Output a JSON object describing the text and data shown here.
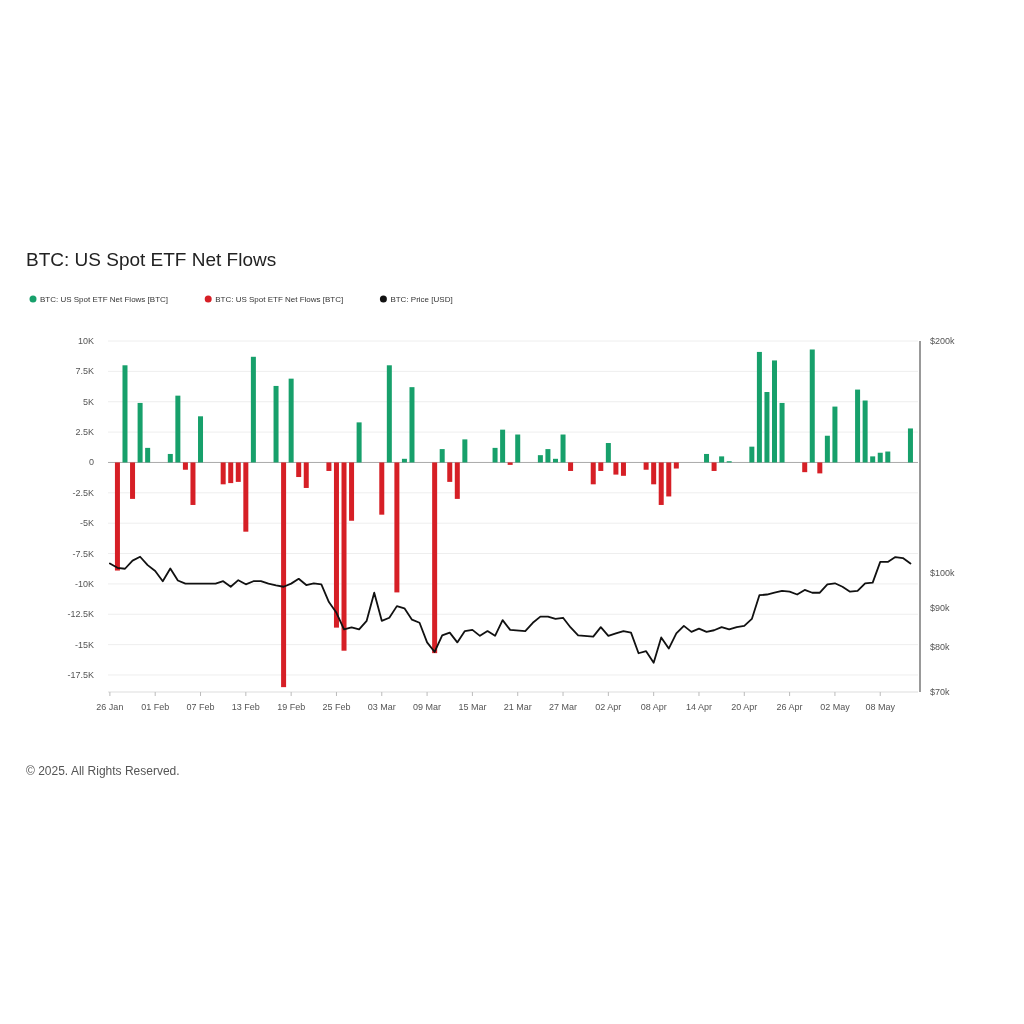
{
  "chart_data": {
    "type": "bar",
    "title": "BTC: US Spot ETF Net Flows",
    "annotations": [
      "© 2025. All Rights Reserved."
    ],
    "legend": "top left",
    "grid": "y",
    "log": "y2",
    "xlim": [
      "2025-01-25T18:00",
      "2025-05-13"
    ],
    "xticks": [
      {
        "value": "2025-01-26",
        "label": "26 Jan"
      },
      {
        "value": "2025-02-01",
        "label": "01 Feb"
      },
      {
        "value": "2025-02-07",
        "label": "07 Feb"
      },
      {
        "value": "2025-02-13",
        "label": "13 Feb"
      },
      {
        "value": "2025-02-19",
        "label": "19 Feb"
      },
      {
        "value": "2025-02-25",
        "label": "25 Feb"
      },
      {
        "value": "2025-03-03",
        "label": "03 Mar"
      },
      {
        "value": "2025-03-09",
        "label": "09 Mar"
      },
      {
        "value": "2025-03-15",
        "label": "15 Mar"
      },
      {
        "value": "2025-03-21",
        "label": "21 Mar"
      },
      {
        "value": "2025-03-27",
        "label": "27 Mar"
      },
      {
        "value": "2025-04-02",
        "label": "02 Apr"
      },
      {
        "value": "2025-04-08",
        "label": "08 Apr"
      },
      {
        "value": "2025-04-14",
        "label": "14 Apr"
      },
      {
        "value": "2025-04-20",
        "label": "20 Apr"
      },
      {
        "value": "2025-04-26",
        "label": "26 Apr"
      },
      {
        "value": "2025-05-02",
        "label": "02 May"
      },
      {
        "value": "2025-05-08",
        "label": "08 May"
      }
    ],
    "ylim": [
      -18900,
      10000
    ],
    "yticks": [
      {
        "value": 10000,
        "label": "10K"
      },
      {
        "value": 7500,
        "label": "7.5K"
      },
      {
        "value": 5000,
        "label": "5K"
      },
      {
        "value": 2500,
        "label": "2.5K"
      },
      0,
      {
        "value": -2500,
        "label": "-2.5K"
      },
      {
        "value": -5000,
        "label": "-5K"
      },
      {
        "value": -7500,
        "label": "-7.5K"
      },
      {
        "value": -10000,
        "label": "-10K"
      },
      {
        "value": -12500,
        "label": "-12.5K"
      },
      {
        "value": -15000,
        "label": "-15K"
      },
      {
        "value": -17500,
        "label": "-17.5K"
      }
    ],
    "y2lim": [
      70000,
      200000
    ],
    "y2ticks": [
      {
        "value": 70000,
        "label": "$70k"
      },
      {
        "value": 80000,
        "label": "$80k"
      },
      {
        "value": 90000,
        "label": "$90k"
      },
      {
        "value": 100000,
        "label": "$100k"
      },
      {
        "value": 200000,
        "label": "$200k"
      }
    ],
    "series": [
      {
        "name": "BTC: US Spot ETF Net Flows [BTC]",
        "color": "#17a06b",
        "x": [
          "2025-01-28",
          "2025-01-30",
          "2025-01-31",
          "2025-02-03",
          "2025-02-04",
          "2025-02-07",
          "2025-02-14",
          "2025-02-17",
          "2025-02-19",
          "2025-02-28",
          "2025-03-04",
          "2025-03-06",
          "2025-03-07",
          "2025-03-11",
          "2025-03-14",
          "2025-03-18",
          "2025-03-19",
          "2025-03-21",
          "2025-03-24",
          "2025-03-25",
          "2025-03-26",
          "2025-03-27",
          "2025-04-02",
          "2025-04-15",
          "2025-04-17",
          "2025-04-18",
          "2025-04-21",
          "2025-04-22",
          "2025-04-23",
          "2025-04-24",
          "2025-04-25",
          "2025-04-29",
          "2025-05-01",
          "2025-05-02",
          "2025-05-05",
          "2025-05-06",
          "2025-05-07",
          "2025-05-08",
          "2025-05-09",
          "2025-05-12"
        ],
        "values": [
          8000,
          4900,
          1200,
          700,
          5500,
          3800,
          8700,
          6300,
          6900,
          3300,
          8000,
          300,
          6200,
          1100,
          1900,
          1200,
          2700,
          2300,
          600,
          1100,
          300,
          2300,
          1600,
          700,
          500,
          100,
          1300,
          9100,
          5800,
          8400,
          4900,
          9300,
          2200,
          4600,
          6000,
          5100,
          500,
          800,
          900,
          2800
        ]
      },
      {
        "name": "BTC: US Spot ETF Net Flows [BTC]",
        "color": "#d61f26",
        "x": [
          "2025-01-27",
          "2025-01-29",
          "2025-02-05",
          "2025-02-06",
          "2025-02-10",
          "2025-02-11",
          "2025-02-12",
          "2025-02-13",
          "2025-02-18",
          "2025-02-20",
          "2025-02-21",
          "2025-02-24",
          "2025-02-25",
          "2025-02-26",
          "2025-02-27",
          "2025-03-03",
          "2025-03-05",
          "2025-03-10",
          "2025-03-12",
          "2025-03-13",
          "2025-03-20",
          "2025-03-28",
          "2025-03-31",
          "2025-04-01",
          "2025-04-03",
          "2025-04-04",
          "2025-04-07",
          "2025-04-08",
          "2025-04-09",
          "2025-04-10",
          "2025-04-11",
          "2025-04-16",
          "2025-04-28",
          "2025-04-30"
        ],
        "values": [
          -8900,
          -3000,
          -600,
          -3500,
          -1800,
          -1700,
          -1600,
          -5700,
          -18500,
          -1200,
          -2100,
          -700,
          -13600,
          -15500,
          -4800,
          -4300,
          -10700,
          -15700,
          -1600,
          -3000,
          -200,
          -700,
          -1800,
          -700,
          -1000,
          -1100,
          -600,
          -1800,
          -3500,
          -2800,
          -500,
          -700,
          -800,
          -900
        ]
      },
      {
        "name": "BTC: Price [USD]",
        "type": "line",
        "axis": "y2",
        "color": "#111111",
        "x": [
          "2025-01-26",
          "2025-01-27",
          "2025-01-28",
          "2025-01-29",
          "2025-01-30",
          "2025-01-31",
          "2025-02-01",
          "2025-02-02",
          "2025-02-03",
          "2025-02-04",
          "2025-02-05",
          "2025-02-09",
          "2025-02-10",
          "2025-02-11",
          "2025-02-12",
          "2025-02-13",
          "2025-02-14",
          "2025-02-15",
          "2025-02-16",
          "2025-02-17",
          "2025-02-18",
          "2025-02-19",
          "2025-02-20",
          "2025-02-21",
          "2025-02-22",
          "2025-02-23",
          "2025-02-24",
          "2025-02-25",
          "2025-02-26",
          "2025-02-27",
          "2025-02-28",
          "2025-03-01",
          "2025-03-02",
          "2025-03-03",
          "2025-03-04",
          "2025-03-05",
          "2025-03-06",
          "2025-03-07",
          "2025-03-08",
          "2025-03-09",
          "2025-03-10",
          "2025-03-11",
          "2025-03-12",
          "2025-03-13",
          "2025-03-14",
          "2025-03-15",
          "2025-03-16",
          "2025-03-17",
          "2025-03-18",
          "2025-03-19",
          "2025-03-20",
          "2025-03-22",
          "2025-03-23",
          "2025-03-24",
          "2025-03-25",
          "2025-03-26",
          "2025-03-27",
          "2025-03-28",
          "2025-03-29",
          "2025-03-31",
          "2025-04-01",
          "2025-04-02",
          "2025-04-03",
          "2025-04-04",
          "2025-04-05",
          "2025-04-06",
          "2025-04-07",
          "2025-04-08",
          "2025-04-09",
          "2025-04-10",
          "2025-04-11",
          "2025-04-12",
          "2025-04-13",
          "2025-04-14",
          "2025-04-15",
          "2025-04-16",
          "2025-04-17",
          "2025-04-18",
          "2025-04-19",
          "2025-04-20",
          "2025-04-21",
          "2025-04-22",
          "2025-04-23",
          "2025-04-24",
          "2025-04-25",
          "2025-04-26",
          "2025-04-27",
          "2025-04-28",
          "2025-04-29",
          "2025-04-30",
          "2025-05-01",
          "2025-05-02",
          "2025-05-03",
          "2025-05-04",
          "2025-05-05",
          "2025-05-06",
          "2025-05-07",
          "2025-05-08",
          "2025-05-09",
          "2025-05-10",
          "2025-05-11",
          "2025-05-12"
        ],
        "values": [
          102800,
          101500,
          101200,
          103700,
          104900,
          102300,
          100500,
          97500,
          101300,
          97700,
          96800,
          96800,
          97500,
          95900,
          97800,
          96600,
          97500,
          97500,
          96800,
          96300,
          95900,
          96800,
          98200,
          96400,
          96900,
          96600,
          91600,
          88700,
          84400,
          84900,
          84400,
          86600,
          94200,
          86600,
          87400,
          90500,
          89900,
          86900,
          86100,
          81200,
          78900,
          82900,
          83600,
          81200,
          84000,
          84300,
          82800,
          84000,
          82800,
          86800,
          84300,
          84000,
          86100,
          87700,
          87700,
          87100,
          87400,
          84900,
          82900,
          82600,
          85000,
          82800,
          83400,
          84000,
          83600,
          78600,
          79100,
          76400,
          82400,
          79700,
          83400,
          85300,
          83800,
          84600,
          83800,
          84200,
          85000,
          84400,
          85000,
          85300,
          87100,
          93500,
          93700,
          94200,
          94700,
          94500,
          93700,
          95000,
          94200,
          94200,
          96600,
          96900,
          95900,
          94500,
          94700,
          96900,
          97100,
          103300,
          103300,
          104800,
          104500,
          102800
        ]
      }
    ]
  }
}
